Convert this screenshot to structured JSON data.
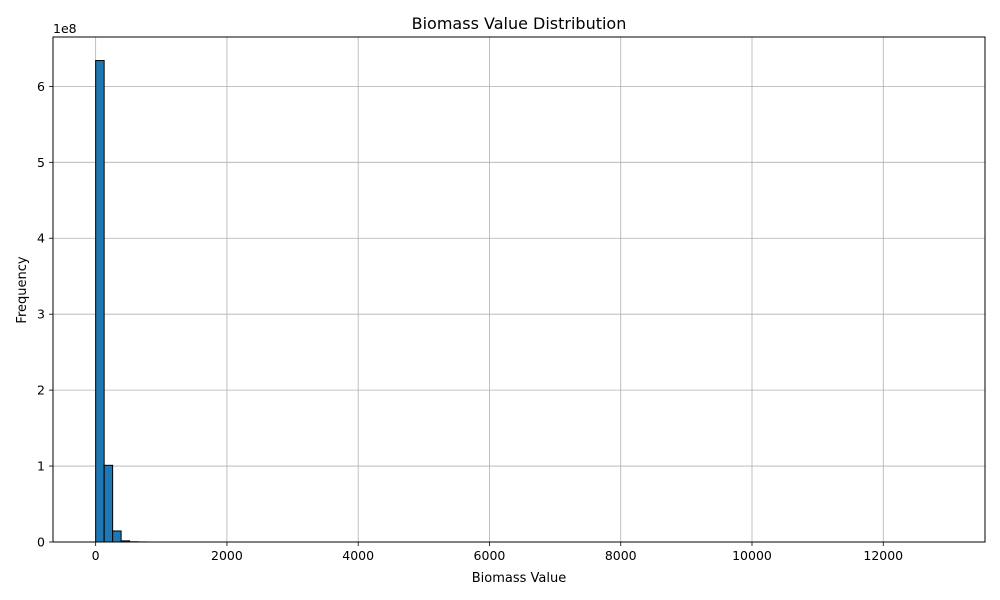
{
  "chart_data": {
    "type": "bar",
    "title": "Biomass Value Distribution",
    "xlabel": "Biomass Value",
    "ylabel": "Frequency",
    "y_offset_label": "1e8",
    "y_scale": 100000000,
    "xlim": [
      -650,
      13550
    ],
    "ylim": [
      0,
      665000000
    ],
    "grid": true,
    "bar_color": "#1f77b4",
    "edge_color": "#000000",
    "x_ticks": [
      {
        "value": 0,
        "label": "0"
      },
      {
        "value": 2000,
        "label": "2000"
      },
      {
        "value": 4000,
        "label": "4000"
      },
      {
        "value": 6000,
        "label": "6000"
      },
      {
        "value": 8000,
        "label": "8000"
      },
      {
        "value": 10000,
        "label": "10000"
      },
      {
        "value": 12000,
        "label": "12000"
      }
    ],
    "y_ticks": [
      {
        "value": 0,
        "label": "0"
      },
      {
        "value": 100000000,
        "label": "1"
      },
      {
        "value": 200000000,
        "label": "2"
      },
      {
        "value": 300000000,
        "label": "3"
      },
      {
        "value": 400000000,
        "label": "4"
      },
      {
        "value": 500000000,
        "label": "5"
      },
      {
        "value": 600000000,
        "label": "6"
      }
    ],
    "bins": {
      "start": 0,
      "width": 129.35,
      "count": 100,
      "counts_head": [
        634000000,
        101000000,
        14500000,
        1500000,
        300000,
        100000
      ],
      "tail_count": 0
    }
  }
}
